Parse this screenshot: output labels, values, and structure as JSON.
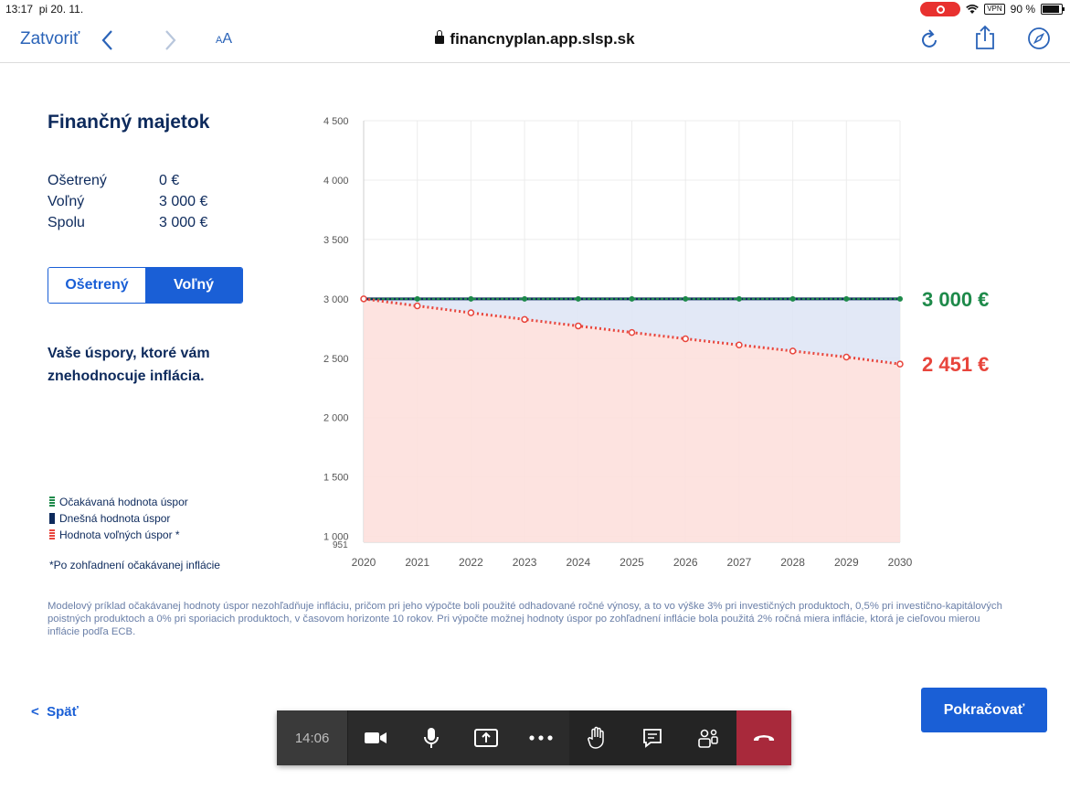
{
  "status_bar": {
    "time": "13:17",
    "date": "pi 20. 11.",
    "vpn": "VPN",
    "battery": "90 %"
  },
  "browser": {
    "close_label": "Zatvoriť",
    "aa_label_small": "A",
    "aa_label_big": "A",
    "url": "financnyplan.app.slsp.sk"
  },
  "panel": {
    "title": "Finančný majetok",
    "rows": [
      {
        "label": "Ošetrený",
        "value": "0 €"
      },
      {
        "label": "Voľný",
        "value": "3 000 €"
      },
      {
        "label": "Spolu",
        "value": "3 000 €"
      }
    ],
    "toggle": {
      "left": "Ošetrený",
      "right": "Voľný",
      "selected": "right"
    },
    "info": "Vaše úspory, ktoré vám znehodnocuje inflácia.",
    "legend": [
      {
        "label": "Očakávaná hodnota úspor",
        "color": "#1e8a4a"
      },
      {
        "label": "Dnešná hodnota úspor",
        "color": "#0d2a5c"
      },
      {
        "label": "Hodnota voľných úspor *",
        "color": "#e8453c"
      }
    ],
    "footnote": "*Po zohľadnení očakávanej inflácie"
  },
  "chart_data": {
    "type": "line",
    "x": [
      2020,
      2021,
      2022,
      2023,
      2024,
      2025,
      2026,
      2027,
      2028,
      2029,
      2030
    ],
    "yticks": [
      "4 500",
      "4 000",
      "3 500",
      "3 000",
      "2 500",
      "2 000",
      "1 500",
      "1 000"
    ],
    "ylim": [
      951,
      4500
    ],
    "ymin_label": "951",
    "series": [
      {
        "values": [
          3000,
          3000,
          3000,
          3000,
          3000,
          3000,
          3000,
          3000,
          3000,
          3000,
          3000
        ],
        "color": "#1e8a4a"
      },
      {
        "values": [
          3000,
          3000,
          3000,
          3000,
          3000,
          3000,
          3000,
          3000,
          3000,
          3000,
          3000
        ],
        "color": "#0d2a5c"
      },
      {
        "values": [
          3000,
          2941,
          2883,
          2827,
          2772,
          2717,
          2664,
          2612,
          2561,
          2510,
          2451
        ],
        "color": "#e8453c"
      }
    ],
    "end_labels": {
      "top": "3 000 €",
      "bottom": "2 451 €"
    },
    "colors": {
      "green": "#1e8a4a",
      "red": "#e8453c",
      "blue_fill": "#dfe6f5",
      "red_fill": "#fde0dd"
    }
  },
  "disclaimer": "Modelový príklad očakávanej hodnoty úspor nezohľadňuje infláciu, pričom pri jeho výpočte boli použité odhadované ročné výnosy, a to vo výške 3% pri investičných produktoch, 0,5% pri investično-kapitálových poistných produktoch a 0% pri sporiacich produktoch, v časovom horizonte 10 rokov. Pri výpočte možnej hodnoty úspor po zohľadnení inflácie bola použitá 2% ročná miera inflácie, ktorá je cieľovou mierou inflácie podľa ECB.",
  "nav": {
    "back": "Späť",
    "continue": "Pokračovať"
  },
  "meeting": {
    "time": "14:06"
  }
}
